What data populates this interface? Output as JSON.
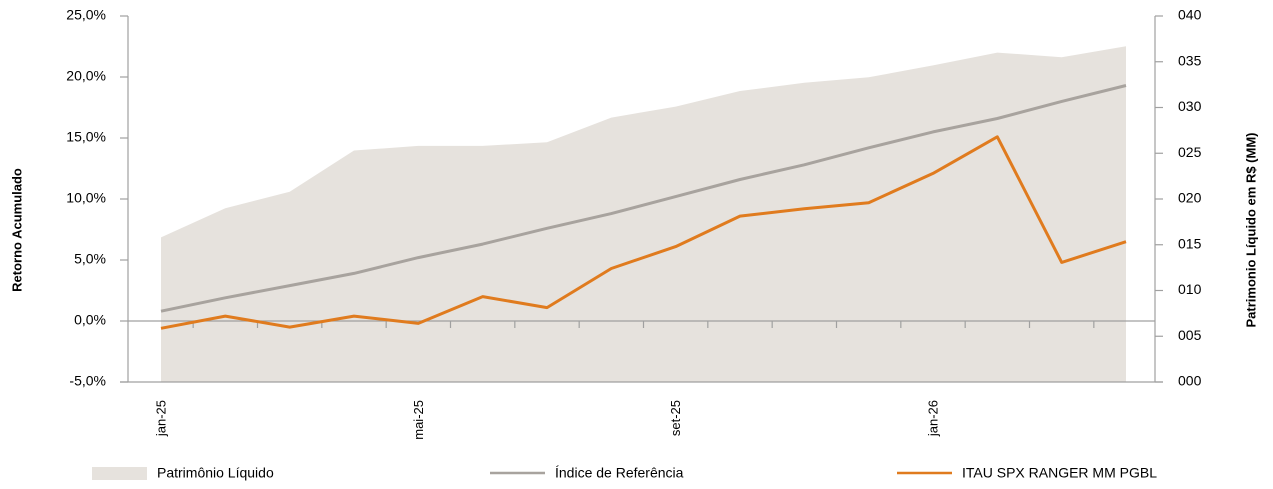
{
  "chart_data": {
    "type": "combo",
    "y_label": "Retorno Acumulado",
    "y2_label": "Patrimonio Líquido em R$ (MM)",
    "categories": [
      "jan-25",
      null,
      null,
      null,
      "mai-25",
      null,
      null,
      null,
      "set-25",
      null,
      null,
      null,
      "jan-26",
      null,
      null,
      null
    ],
    "ylim": [
      -5,
      25
    ],
    "yticks": [
      {
        "value": -5,
        "label": "-5,0%"
      },
      {
        "value": 0,
        "label": "0,0%"
      },
      {
        "value": 5,
        "label": "5,0%"
      },
      {
        "value": 10,
        "label": "10,0%"
      },
      {
        "value": 15,
        "label": "15,0%"
      },
      {
        "value": 20,
        "label": "20,0%"
      },
      {
        "value": 25,
        "label": "25,0%"
      }
    ],
    "y2lim": [
      0,
      40
    ],
    "y2ticks": [
      {
        "value": 0,
        "label": "000"
      },
      {
        "value": 5,
        "label": "005"
      },
      {
        "value": 10,
        "label": "010"
      },
      {
        "value": 15,
        "label": "015"
      },
      {
        "value": 20,
        "label": "020"
      },
      {
        "value": 25,
        "label": "025"
      },
      {
        "value": 30,
        "label": "030"
      },
      {
        "value": 35,
        "label": "035"
      },
      {
        "value": 40,
        "label": "040"
      }
    ],
    "series": [
      {
        "name": "Patrimônio Líquido",
        "type": "area",
        "axis": "y2",
        "color": "#e6e2dd",
        "values": [
          15.8,
          19.0,
          20.8,
          25.3,
          25.8,
          25.8,
          26.2,
          28.9,
          30.1,
          31.8,
          32.7,
          33.3,
          34.6,
          36.0,
          35.5,
          36.7
        ]
      },
      {
        "name": "Índice de Referência",
        "type": "line",
        "color": "#a8a39e",
        "values": [
          0.8,
          1.9,
          2.9,
          3.9,
          5.2,
          6.3,
          7.6,
          8.8,
          10.2,
          11.6,
          12.8,
          14.2,
          15.5,
          16.6,
          18.0,
          19.3
        ]
      },
      {
        "name": "ITAU SPX RANGER MM PGBL",
        "type": "line",
        "color": "#e07b1e",
        "values": [
          -0.6,
          0.4,
          -0.5,
          0.4,
          -0.2,
          2.0,
          1.1,
          4.3,
          6.1,
          8.6,
          9.2,
          9.7,
          12.1,
          15.1,
          4.8,
          6.5
        ]
      }
    ]
  }
}
